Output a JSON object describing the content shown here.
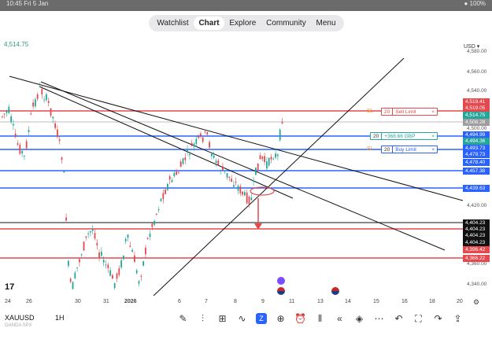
{
  "status_bar": {
    "left": "10:45  Fri 5 Jan",
    "right": "● 100%"
  },
  "nav": {
    "tabs": [
      "Watchlist",
      "Chart",
      "Explore",
      "Community",
      "Menu"
    ],
    "active": "Chart"
  },
  "chart_header": {
    "top_price": "4,514.75",
    "currency": "USD"
  },
  "y_axis": {
    "plain_labels": [
      "4,580.00",
      "4,560.00",
      "4,540.00",
      "4,500.00",
      "4,440.00",
      "4,420.00",
      "4,380.00",
      "4,360.00",
      "4,340.00"
    ],
    "tags": [
      {
        "text": "4,519.41",
        "color": "#e5484d"
      },
      {
        "text": "4,519.05",
        "color": "#e5484d"
      },
      {
        "text": "4,514.75",
        "color": "#26a69a"
      },
      {
        "text": "4,508.28",
        "color": "#9e9e9e"
      },
      {
        "text": "4,494.99",
        "color": "#2962ff"
      },
      {
        "text": "4,494.36",
        "color": "#26a69a"
      },
      {
        "text": "4,493.73",
        "color": "#2962ff"
      },
      {
        "text": "4,479.73",
        "color": "#2962ff"
      },
      {
        "text": "4,478.40",
        "color": "#2962ff"
      },
      {
        "text": "4,457.38",
        "color": "#2962ff"
      },
      {
        "text": "4,439.63",
        "color": "#2962ff"
      },
      {
        "text": "4,404.23",
        "color": "#111111"
      },
      {
        "text": "4,404.23",
        "color": "#111111"
      },
      {
        "text": "4,404.23",
        "color": "#111111"
      },
      {
        "text": "4,404.23",
        "color": "#111111"
      },
      {
        "text": "4,396.42",
        "color": "#e5484d"
      },
      {
        "text": "4,366.22",
        "color": "#e5484d"
      }
    ]
  },
  "x_axis": {
    "labels": [
      "24",
      "26",
      "30",
      "31",
      "2026",
      "6",
      "7",
      "8",
      "9",
      "11",
      "13",
      "14",
      "15",
      "16",
      "18",
      "20"
    ]
  },
  "orders": {
    "sell_limit": {
      "tag": "SL",
      "qty": "20",
      "label": "Sell Limit",
      "close": "×"
    },
    "position": {
      "qty": "20",
      "pnl": "+368.66 GBP",
      "close": "×"
    },
    "buy_limit": {
      "tag": "SL",
      "qty": "20",
      "label": "Buy Limit",
      "close": "×"
    }
  },
  "footer": {
    "symbol": "XAUUSD",
    "timeframe": "1H",
    "exchange": "OANDA SPX"
  },
  "toolbar_icons": [
    "pen-icon",
    "indicators-icon",
    "templates-icon",
    "drawings-icon",
    "replay-icon",
    "add-icon",
    "alert-icon",
    "candles-icon",
    "rewind-icon",
    "layers-icon",
    "more-icon",
    "undo-icon",
    "fullscreen-icon",
    "redo-icon",
    "share-icon"
  ],
  "colors": {
    "bull": "#26a69a",
    "bear": "#e5484d",
    "blue_line": "#2962ff",
    "accent": "#2962ff"
  }
}
